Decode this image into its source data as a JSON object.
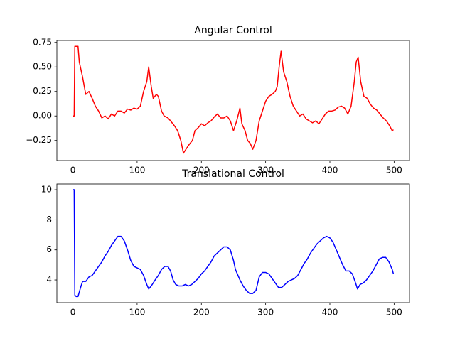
{
  "chart_data": [
    {
      "type": "line",
      "title": "Angular Control",
      "color": "#ff0000",
      "x": [
        0,
        2,
        3,
        8,
        10,
        15,
        20,
        25,
        30,
        35,
        40,
        45,
        50,
        55,
        60,
        65,
        70,
        75,
        80,
        85,
        90,
        95,
        100,
        105,
        110,
        115,
        118,
        122,
        125,
        130,
        133,
        138,
        142,
        148,
        152,
        158,
        163,
        168,
        172,
        176,
        180,
        186,
        190,
        195,
        200,
        205,
        210,
        215,
        220,
        225,
        230,
        235,
        240,
        245,
        250,
        255,
        260,
        263,
        268,
        272,
        276,
        280,
        285,
        290,
        295,
        300,
        305,
        310,
        315,
        318,
        321,
        324,
        328,
        333,
        338,
        343,
        348,
        353,
        358,
        363,
        368,
        373,
        378,
        383,
        388,
        393,
        398,
        403,
        408,
        413,
        418,
        423,
        428,
        433,
        438,
        441,
        444,
        448,
        453,
        458,
        463,
        468,
        473,
        478,
        483,
        488,
        493,
        497,
        499
      ],
      "values": [
        0,
        0,
        0.71,
        0.71,
        0.55,
        0.4,
        0.22,
        0.25,
        0.18,
        0.1,
        0.05,
        -0.02,
        0,
        -0.03,
        0.02,
        0,
        0.05,
        0.05,
        0.03,
        0.07,
        0.06,
        0.08,
        0.07,
        0.1,
        0.25,
        0.35,
        0.5,
        0.3,
        0.18,
        0.22,
        0.2,
        0.05,
        0,
        -0.02,
        -0.05,
        -0.1,
        -0.15,
        -0.25,
        -0.38,
        -0.34,
        -0.3,
        -0.25,
        -0.15,
        -0.12,
        -0.08,
        -0.1,
        -0.07,
        -0.05,
        -0.01,
        0.02,
        -0.02,
        -0.02,
        0,
        -0.05,
        -0.15,
        -0.05,
        0.08,
        -0.08,
        -0.15,
        -0.25,
        -0.28,
        -0.34,
        -0.25,
        -0.05,
        0.05,
        0.15,
        0.2,
        0.22,
        0.25,
        0.3,
        0.5,
        0.66,
        0.45,
        0.35,
        0.2,
        0.1,
        0.05,
        0,
        0.02,
        -0.03,
        -0.05,
        -0.07,
        -0.05,
        -0.08,
        -0.03,
        0.02,
        0.05,
        0.05,
        0.06,
        0.09,
        0.1,
        0.08,
        0.02,
        0.1,
        0.35,
        0.55,
        0.6,
        0.35,
        0.2,
        0.18,
        0.12,
        0.08,
        0.06,
        0.02,
        -0.02,
        -0.05,
        -0.1,
        -0.15,
        -0.14
      ],
      "xlim": [
        -24.95,
        523.95
      ],
      "xticks": [
        0,
        100,
        200,
        300,
        400,
        500
      ],
      "ylim": [
        -0.455,
        0.77
      ],
      "yticks": [
        {
          "value": -0.25,
          "label": "−0.25"
        },
        {
          "value": 0,
          "label": "0.00"
        },
        {
          "value": 0.25,
          "label": "0.25"
        },
        {
          "value": 0.5,
          "label": "0.50"
        },
        {
          "value": 0.75,
          "label": "0.75"
        }
      ]
    },
    {
      "type": "line",
      "title": "Translational Control",
      "color": "#0000ff",
      "x": [
        0,
        2,
        3,
        5,
        8,
        12,
        15,
        20,
        25,
        30,
        35,
        40,
        45,
        50,
        55,
        60,
        65,
        70,
        75,
        80,
        85,
        90,
        95,
        100,
        105,
        110,
        115,
        118,
        122,
        128,
        133,
        138,
        143,
        148,
        152,
        156,
        160,
        165,
        170,
        175,
        180,
        185,
        190,
        195,
        200,
        205,
        210,
        215,
        220,
        225,
        230,
        235,
        240,
        245,
        250,
        253,
        256,
        260,
        265,
        270,
        275,
        280,
        285,
        290,
        295,
        300,
        305,
        310,
        315,
        320,
        325,
        330,
        335,
        340,
        345,
        350,
        355,
        360,
        365,
        370,
        375,
        380,
        385,
        390,
        395,
        400,
        405,
        410,
        415,
        420,
        425,
        430,
        435,
        440,
        443,
        447,
        452,
        457,
        462,
        467,
        472,
        477,
        482,
        487,
        492,
        497,
        499
      ],
      "values": [
        10,
        10,
        3,
        2.9,
        2.9,
        3.5,
        3.9,
        3.9,
        4.2,
        4.3,
        4.6,
        4.9,
        5.2,
        5.6,
        5.9,
        6.3,
        6.6,
        6.9,
        6.9,
        6.6,
        6,
        5.3,
        4.9,
        4.8,
        4.7,
        4.3,
        3.7,
        3.4,
        3.6,
        4,
        4.3,
        4.7,
        4.9,
        4.9,
        4.6,
        4,
        3.7,
        3.6,
        3.6,
        3.7,
        3.6,
        3.7,
        3.9,
        4.1,
        4.4,
        4.6,
        4.9,
        5.2,
        5.6,
        5.8,
        6,
        6.2,
        6.2,
        6,
        5.3,
        4.7,
        4.4,
        4,
        3.6,
        3.3,
        3.1,
        3.1,
        3.3,
        4.2,
        4.5,
        4.5,
        4.4,
        4.1,
        3.8,
        3.5,
        3.5,
        3.7,
        3.9,
        4,
        4.1,
        4.3,
        4.7,
        5.1,
        5.4,
        5.8,
        6.1,
        6.4,
        6.6,
        6.8,
        6.9,
        6.8,
        6.5,
        6,
        5.5,
        5,
        4.6,
        4.6,
        4.4,
        3.8,
        3.4,
        3.7,
        3.8,
        4,
        4.3,
        4.6,
        5,
        5.4,
        5.5,
        5.5,
        5.2,
        4.7,
        4.4
      ],
      "xlim": [
        -24.95,
        523.95
      ],
      "xticks": [
        0,
        100,
        200,
        300,
        400,
        500
      ],
      "ylim": [
        2.49,
        10.38
      ],
      "yticks": [
        4,
        6,
        8,
        10
      ]
    }
  ]
}
